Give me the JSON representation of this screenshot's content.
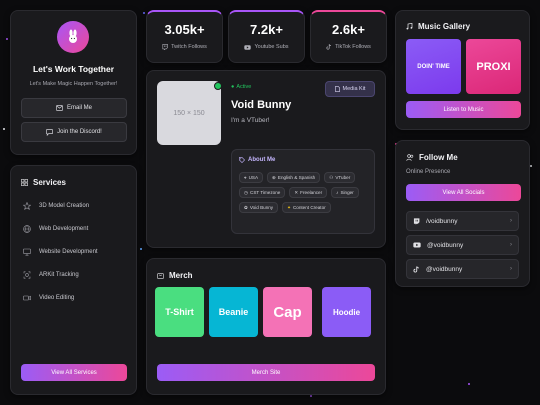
{
  "contact": {
    "title": "Let's Work Together",
    "subtitle": "Let's Make Magic Happen Together!",
    "email_label": "Email Me",
    "discord_label": "Join the Discord!"
  },
  "stats": [
    {
      "value": "3.05k+",
      "label": "Twitch Follows",
      "icon": "twitch-icon"
    },
    {
      "value": "7.2k+",
      "label": "Youtube Subs",
      "icon": "youtube-icon"
    },
    {
      "value": "2.6k+",
      "label": "TikTok Follows",
      "icon": "tiktok-icon"
    }
  ],
  "profile": {
    "image_placeholder": "150 × 150",
    "status": "Active",
    "name": "Void Bunny",
    "tagline": "I'm a VTuber!",
    "media_kit_label": "Media Kit",
    "about_title": "About Me",
    "tags": [
      "USA",
      "English & Spanish",
      "VTuber",
      "CST Timezone",
      "Freelancer",
      "Singer",
      "Void Bunny",
      "Content Creator"
    ]
  },
  "music": {
    "title": "Music Gallery",
    "album1": "DOIN' TIME",
    "album2": "PROXI",
    "button_label": "Listen to Music"
  },
  "follow": {
    "title": "Follow Me",
    "subtitle": "Online Presence",
    "button_label": "View All Socials",
    "socials": [
      {
        "handle": "/voidbunny",
        "icon": "twitch-icon"
      },
      {
        "handle": "@voidbunny",
        "icon": "youtube-icon"
      },
      {
        "handle": "@voidbunny",
        "icon": "tiktok-icon"
      }
    ]
  },
  "services": {
    "title": "Services",
    "items": [
      "3D Model Creation",
      "Web Development",
      "Website Development",
      "ARKit Tracking",
      "Video Editing"
    ],
    "button_label": "View All Services"
  },
  "merch": {
    "title": "Merch",
    "items": [
      "T-Shirt",
      "Beanie",
      "Cap",
      "Hoodie"
    ],
    "button_label": "Merch Site"
  },
  "colors": {
    "accent_purple": "#9b5cf6",
    "accent_pink": "#ec4899",
    "active_green": "#22c55e",
    "tile_green": "#4ade80",
    "tile_teal": "#06b6d4",
    "tile_pink": "#f472b6",
    "tile_purple": "#8b5cf6"
  }
}
